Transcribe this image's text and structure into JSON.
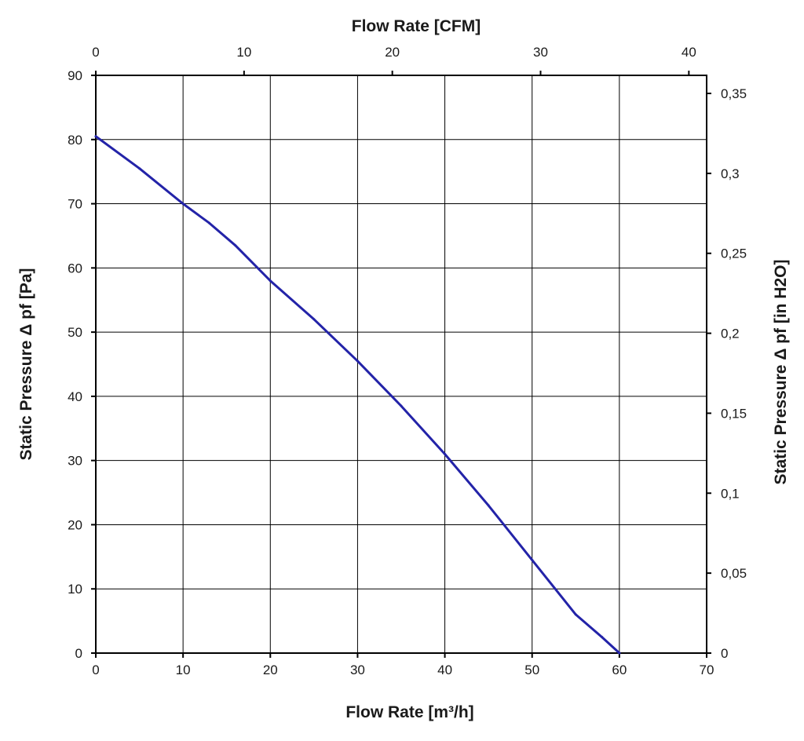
{
  "chart_data": {
    "type": "line",
    "title": "",
    "xlabel": "Flow Rate [m³/h]",
    "x2label": "Flow Rate [CFM]",
    "ylabel": "Static Pressure Δ pf [Pa]",
    "y2label": "Static Pressure Δ pf [in H2O]",
    "xlim": [
      0,
      70
    ],
    "ylim": [
      0,
      90
    ],
    "x2lim": [
      0,
      41.2
    ],
    "y2lim": [
      0,
      0.3613
    ],
    "grid": true,
    "legend": "none",
    "x_ticks": [
      "0",
      "10",
      "20",
      "30",
      "40",
      "50",
      "60",
      "70"
    ],
    "y_ticks": [
      "0",
      "10",
      "20",
      "30",
      "40",
      "50",
      "60",
      "70",
      "80",
      "90"
    ],
    "x2_ticks": [
      "0",
      "10",
      "20",
      "30",
      "40"
    ],
    "y2_ticks": [
      "0",
      "0,05",
      "0,1",
      "0,15",
      "0,2",
      "0,25",
      "0,3",
      "0,35"
    ],
    "series": [
      {
        "name": "Static Pressure",
        "color": "#2323a8",
        "x": [
          0,
          5,
          10,
          13,
          16,
          20,
          25,
          30,
          35,
          40,
          45,
          50,
          55,
          58,
          60
        ],
        "y": [
          80.5,
          75.5,
          70,
          67,
          63.5,
          58,
          52,
          45.5,
          38.5,
          31,
          23,
          14.5,
          6,
          2.5,
          0
        ]
      }
    ]
  }
}
